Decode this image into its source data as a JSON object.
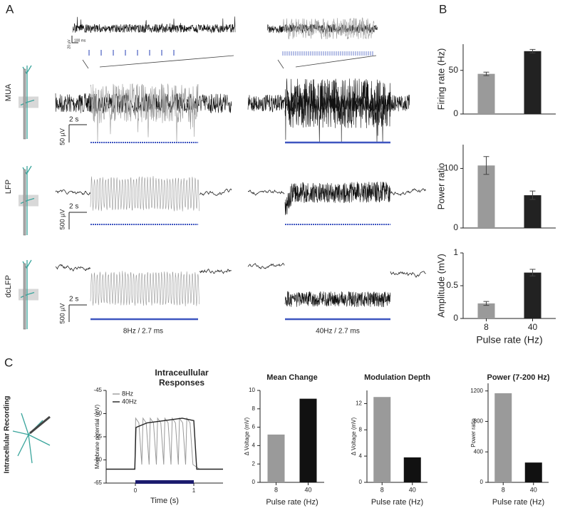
{
  "panels": {
    "a": "A",
    "b": "B",
    "c": "C"
  },
  "figure": {
    "rows": [
      "MUA",
      "LFP",
      "dcLFP"
    ],
    "scale_time": "2 s",
    "scale_mua": "50 µV",
    "scale_lfp": "500 µV",
    "scale_dc": "500 µV",
    "inset_time": "100 ms",
    "inset_volt": "20 µV",
    "cond_8": "8Hz / 2.7 ms",
    "cond_40": "40Hz / 2.7 ms",
    "intracellular": "Intracellular Recording"
  },
  "chart_data": [
    {
      "type": "bar",
      "ylabel": "Firing rate (Hz)",
      "values": [
        46,
        72
      ],
      "errors": [
        2,
        2
      ],
      "colors": [
        "#9a9a9a",
        "#222222"
      ],
      "ylim": [
        0,
        80
      ],
      "yticks": [
        0,
        50
      ]
    },
    {
      "type": "bar",
      "ylabel": "Power ratio",
      "values": [
        105,
        55
      ],
      "errors": [
        15,
        7
      ],
      "colors": [
        "#9a9a9a",
        "#222222"
      ],
      "ylim": [
        0,
        140
      ],
      "yticks": [
        0,
        100
      ]
    },
    {
      "type": "bar",
      "ylabel": "Amplitude (mV)",
      "categories": [
        "8",
        "40"
      ],
      "xlabel": "Pulse rate (Hz)",
      "values": [
        0.23,
        0.7
      ],
      "errors": [
        0.03,
        0.05
      ],
      "colors": [
        "#9a9a9a",
        "#222222"
      ],
      "ylim": [
        0,
        1
      ],
      "yticks": [
        0,
        0.5,
        1
      ]
    },
    {
      "type": "line",
      "title": "Intraceullular Responses",
      "ylabel": "Membrane potential (mV)",
      "xlabel": "Time (s)",
      "xlim": [
        -0.5,
        1.5
      ],
      "xticks": [
        0,
        1
      ],
      "ylim": [
        -65,
        -45
      ],
      "yticks": [
        -65,
        -60,
        -55,
        -50,
        -45
      ],
      "series": [
        {
          "name": "8Hz",
          "color": "#999999",
          "x": [
            -0.5,
            -0.01,
            0.005,
            0.06,
            0.11,
            0.13,
            0.185,
            0.235,
            0.255,
            0.31,
            0.36,
            0.38,
            0.435,
            0.485,
            0.505,
            0.56,
            0.61,
            0.63,
            0.685,
            0.735,
            0.755,
            0.81,
            0.86,
            0.88,
            0.935,
            0.985,
            1.1,
            1.5
          ],
          "values": [
            -62,
            -62,
            -51,
            -52,
            -61,
            -51,
            -52,
            -61,
            -51,
            -52,
            -61,
            -51,
            -52,
            -61,
            -51,
            -52,
            -61,
            -51,
            -52,
            -61,
            -51,
            -52,
            -61,
            -51,
            -52,
            -61,
            -62,
            -62
          ]
        },
        {
          "name": "40Hz",
          "color": "#222222",
          "x": [
            -0.5,
            -0.01,
            0.01,
            0.2,
            0.5,
            0.8,
            1.0,
            1.05,
            1.5
          ],
          "values": [
            -62,
            -62,
            -53,
            -52,
            -51.5,
            -51,
            -51.5,
            -62,
            -62
          ]
        }
      ]
    },
    {
      "type": "bar",
      "title": "Mean Change",
      "ylabel": "Δ Voltage (mV)",
      "categories": [
        "8",
        "40"
      ],
      "xlabel": "Pulse rate (Hz)",
      "values": [
        5.2,
        9.1
      ],
      "colors": [
        "#9a9a9a",
        "#111111"
      ],
      "ylim": [
        0,
        10
      ],
      "yticks": [
        0,
        2,
        4,
        6,
        8,
        10
      ]
    },
    {
      "type": "bar",
      "title": "Modulation Depth",
      "ylabel": "Δ Voltage (mV)",
      "categories": [
        "8",
        "40"
      ],
      "xlabel": "Pulse rate (Hz)",
      "values": [
        13,
        3.8
      ],
      "colors": [
        "#9a9a9a",
        "#111111"
      ],
      "ylim": [
        0,
        14
      ],
      "yticks": [
        0,
        4,
        8,
        12
      ]
    },
    {
      "type": "bar",
      "title": "Power (7-200 Hz)",
      "ylabel": "Power ratio",
      "categories": [
        "8",
        "40"
      ],
      "xlabel": "Pulse rate (Hz)",
      "values": [
        1170,
        260
      ],
      "colors": [
        "#9a9a9a",
        "#111111"
      ],
      "ylim": [
        0,
        1300
      ],
      "yticks": [
        0,
        400,
        800,
        1200
      ]
    }
  ]
}
